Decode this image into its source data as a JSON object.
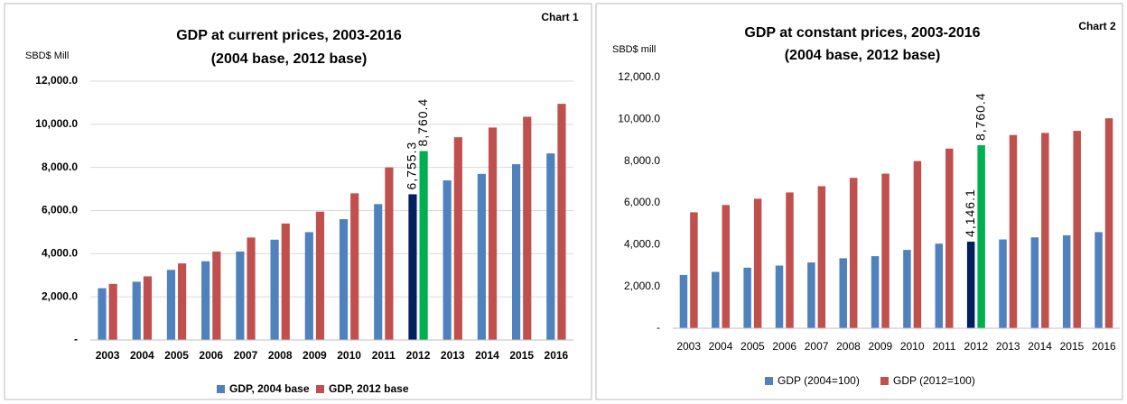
{
  "chart_data": [
    {
      "type": "bar",
      "title": "GDP at current prices, 2003-2016",
      "subtitle": "(2004 base, 2012 base)",
      "annotation": "Chart 1",
      "y_label": "SBD$ Mill",
      "categories": [
        "2003",
        "2004",
        "2005",
        "2006",
        "2007",
        "2008",
        "2009",
        "2010",
        "2011",
        "2012",
        "2013",
        "2014",
        "2015",
        "2016"
      ],
      "series": [
        {
          "name": "GDP, 2004 base",
          "color": "#4f81bd",
          "point_colors": [
            null,
            null,
            null,
            null,
            null,
            null,
            null,
            null,
            null,
            "#002060",
            null,
            null,
            null,
            null
          ],
          "values": [
            2400,
            2700,
            3250,
            3650,
            4100,
            4650,
            5000,
            5600,
            6300,
            6755.3,
            7400,
            7700,
            8150,
            8650
          ],
          "value_labels": [
            null,
            null,
            null,
            null,
            null,
            null,
            null,
            null,
            null,
            "6,755.3",
            null,
            null,
            null,
            null
          ]
        },
        {
          "name": "GDP, 2012 base",
          "color": "#c0504d",
          "point_colors": [
            null,
            null,
            null,
            null,
            null,
            null,
            null,
            null,
            null,
            "#00b050",
            null,
            null,
            null,
            null
          ],
          "values": [
            2600,
            2950,
            3550,
            4100,
            4750,
            5400,
            5950,
            6800,
            8000,
            8760.4,
            9400,
            9850,
            10350,
            10950
          ],
          "value_labels": [
            null,
            null,
            null,
            null,
            null,
            null,
            null,
            null,
            null,
            "8,760.4",
            null,
            null,
            null,
            null
          ]
        }
      ],
      "ylim": [
        0,
        12000
      ],
      "yticks": [
        {
          "value": 0,
          "label": "-"
        },
        {
          "value": 2000,
          "label": "2,000.0"
        },
        {
          "value": 4000,
          "label": "4,000.0"
        },
        {
          "value": 6000,
          "label": "6,000.0"
        },
        {
          "value": 8000,
          "label": "8,000.0"
        },
        {
          "value": 10000,
          "label": "10,000.0"
        },
        {
          "value": 12000,
          "label": "12,000.0"
        }
      ],
      "grid": true,
      "legend": "bottom"
    },
    {
      "type": "bar",
      "title": "GDP at constant prices, 2003-2016",
      "subtitle": "(2004 base, 2012 base)",
      "annotation": "Chart 2",
      "y_label": "SBD$ mill",
      "categories": [
        "2003",
        "2004",
        "2005",
        "2006",
        "2007",
        "2008",
        "2009",
        "2010",
        "2011",
        "2012",
        "2013",
        "2014",
        "2015",
        "2016"
      ],
      "series": [
        {
          "name": "GDP (2004=100)",
          "color": "#4f81bd",
          "point_colors": [
            null,
            null,
            null,
            null,
            null,
            null,
            null,
            null,
            null,
            "#002060",
            null,
            null,
            null,
            null
          ],
          "values": [
            2550,
            2700,
            2900,
            3000,
            3150,
            3350,
            3450,
            3750,
            4050,
            4146.1,
            4250,
            4350,
            4450,
            4600
          ],
          "value_labels": [
            null,
            null,
            null,
            null,
            null,
            null,
            null,
            null,
            null,
            "4,146.1",
            null,
            null,
            null,
            null
          ]
        },
        {
          "name": "GDP (2012=100)",
          "color": "#c0504d",
          "point_colors": [
            null,
            null,
            null,
            null,
            null,
            null,
            null,
            null,
            null,
            "#00b050",
            null,
            null,
            null,
            null
          ],
          "values": [
            5550,
            5900,
            6200,
            6500,
            6800,
            7200,
            7400,
            8000,
            8600,
            8760.4,
            9250,
            9350,
            9450,
            10050
          ],
          "value_labels": [
            null,
            null,
            null,
            null,
            null,
            null,
            null,
            null,
            null,
            "8,760.4",
            null,
            null,
            null,
            null
          ]
        }
      ],
      "ylim": [
        0,
        12000
      ],
      "yticks": [
        {
          "value": 0,
          "label": "-"
        },
        {
          "value": 2000,
          "label": "2,000.0"
        },
        {
          "value": 4000,
          "label": "4,000.0"
        },
        {
          "value": 6000,
          "label": "6,000.0"
        },
        {
          "value": 8000,
          "label": "8,000.0"
        },
        {
          "value": 10000,
          "label": "10,000.0"
        },
        {
          "value": 12000,
          "label": "12,000.0"
        }
      ],
      "grid": false,
      "legend": "bottom"
    }
  ]
}
